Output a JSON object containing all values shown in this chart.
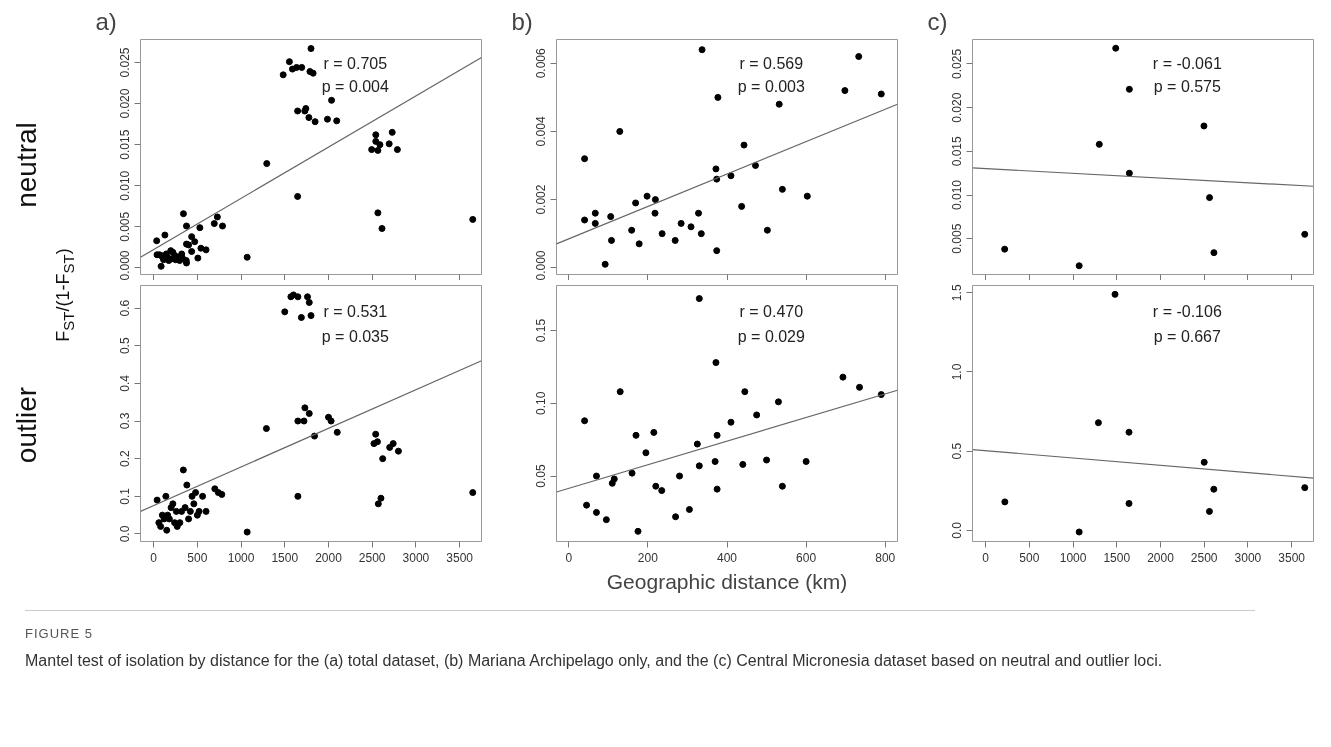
{
  "chart_data": [
    {
      "type": "scatter",
      "title": "a)",
      "ylabel": "F$_{ST}$/(1-F$_{ST}$)",
      "annotations": [
        "r = 0.705",
        "p = 0.004",
        "neutral"
      ],
      "tick_labels": "y",
      "xlim": [
        -150,
        3750
      ],
      "ylim": [
        -0.0008,
        0.0278
      ],
      "xticks": [
        0,
        500,
        1000,
        1500,
        2000,
        2500,
        3000,
        3500
      ],
      "yticks": [
        {
          "value": 0,
          "label": "0.000"
        },
        {
          "value": 0.005,
          "label": "0.005"
        },
        {
          "value": 0.01,
          "label": "0.010"
        },
        {
          "value": 0.015,
          "label": "0.015"
        },
        {
          "value": 0.02,
          "label": "0.020"
        },
        {
          "value": 0.025,
          "label": "0.025"
        }
      ],
      "series": [
        {
          "marker": "circle",
          "color": "#000000",
          "x": [
            1482,
            1553,
            1588,
            1635,
            1694,
            1800,
            1788,
            1824,
            1647,
            1729,
            1741,
            1776,
            1847,
            1988,
            2035,
            2094,
            1294,
            1647,
            2494,
            2541,
            2541,
            2565,
            2588,
            2694,
            2729,
            2788,
            2565,
            2612,
            1070,
            35,
            129,
            341,
            376,
            529,
            694,
            729,
            788,
            435,
            470,
            376,
            400,
            541,
            600,
            435,
            506,
            376,
            39,
            67,
            86,
            106,
            157,
            196,
            220,
            173,
            204,
            251,
            282,
            321,
            329,
            243,
            86,
            114,
            298,
            145,
            373,
            3650
          ],
          "values": [
            0.0235,
            0.0251,
            0.0242,
            0.0244,
            0.0244,
            0.0267,
            0.0239,
            0.0237,
            0.0191,
            0.0191,
            0.0194,
            0.0183,
            0.0178,
            0.0181,
            0.0204,
            0.0179,
            0.0127,
            0.0087,
            0.0144,
            0.0162,
            0.0154,
            0.0143,
            0.015,
            0.0151,
            0.0165,
            0.0144,
            0.0067,
            0.0048,
            0.0013,
            0.0033,
            0.004,
            0.0066,
            0.0051,
            0.0049,
            0.0054,
            0.0062,
            0.0051,
            0.0038,
            0.0032,
            0.0029,
            0.0028,
            0.0024,
            0.0022,
            0.002,
            0.0012,
            0.0006,
            0.0016,
            0.0016,
            0.0015,
            0.0013,
            0.0013,
            0.0021,
            0.0019,
            0.0009,
            0.0011,
            0.001,
            0.0013,
            0.0017,
            0.0012,
            0.0015,
            0.0002,
            0.001,
            0.0009,
            0.0017,
            0.0009,
            0.0059
          ]
        },
        {
          "type": "line",
          "color": "#666666",
          "line_style": "solid",
          "x": [
            -150,
            3750
          ],
          "values": [
            0.0013,
            0.0256
          ]
        }
      ]
    },
    {
      "type": "scatter",
      "title": "b)",
      "annotations": [
        "r = 0.569",
        "p = 0.003"
      ],
      "tick_labels": "y",
      "xlim": [
        -31,
        831
      ],
      "ylim": [
        -0.0002,
        0.0067
      ],
      "xticks": [
        0,
        200,
        400,
        600,
        800
      ],
      "yticks": [
        {
          "value": 0,
          "label": "0.000"
        },
        {
          "value": 0.002,
          "label": "0.002"
        },
        {
          "value": 0.004,
          "label": "0.004"
        },
        {
          "value": 0.006,
          "label": "0.006"
        }
      ],
      "series": [
        {
          "marker": "circle",
          "color": "#000000",
          "x": [
            40,
            129,
            337,
            377,
            372,
            374,
            410,
            443,
            472,
            532,
            540,
            603,
            698,
            733,
            790,
            198,
            219,
            40,
            67,
            67,
            106,
            108,
            92,
            159,
            169,
            178,
            218,
            236,
            269,
            284,
            309,
            328,
            335,
            374,
            437,
            502
          ],
          "values": [
            0.0032,
            0.004,
            0.0064,
            0.005,
            0.0029,
            0.0026,
            0.0027,
            0.0036,
            0.003,
            0.0048,
            0.0023,
            0.0021,
            0.0052,
            0.0062,
            0.0051,
            0.0021,
            0.002,
            0.0014,
            0.0016,
            0.0013,
            0.0015,
            0.0008,
            0.0001,
            0.0011,
            0.0019,
            0.0007,
            0.0016,
            0.001,
            0.0008,
            0.0013,
            0.0012,
            0.0016,
            0.001,
            0.0005,
            0.0018,
            0.0011
          ]
        },
        {
          "type": "line",
          "color": "#666666",
          "line_style": "solid",
          "x": [
            -31,
            831
          ],
          "values": [
            0.0007,
            0.0048
          ]
        }
      ]
    },
    {
      "type": "scatter",
      "title": "c)",
      "annotations": [
        "r = -0.061",
        "p = 0.575"
      ],
      "tick_labels": "y",
      "xlim": [
        -150,
        3750
      ],
      "ylim": [
        0.0009,
        0.0278
      ],
      "xticks": [
        0,
        500,
        1000,
        1500,
        2000,
        2500,
        3000,
        3500
      ],
      "yticks": [
        {
          "value": 0.005,
          "label": "0.005"
        },
        {
          "value": 0.01,
          "label": "0.010"
        },
        {
          "value": 0.015,
          "label": "0.015"
        },
        {
          "value": 0.02,
          "label": "0.020"
        },
        {
          "value": 0.025,
          "label": "0.025"
        }
      ],
      "series": [
        {
          "marker": "circle",
          "color": "#000000",
          "x": [
            1488,
            1644,
            1300,
            1644,
            2497,
            2561,
            2611,
            218,
            1070,
            3650
          ],
          "values": [
            0.0268,
            0.0221,
            0.0158,
            0.0125,
            0.0179,
            0.0097,
            0.0034,
            0.0038,
            0.0019,
            0.0055
          ]
        },
        {
          "type": "line",
          "color": "#666666",
          "line_style": "solid",
          "x": [
            -150,
            3750
          ],
          "values": [
            0.0131,
            0.011
          ]
        }
      ]
    },
    {
      "type": "scatter",
      "annotations": [
        "r = 0.531",
        "p = 0.035",
        "outlier"
      ],
      "xlim": [
        -150,
        3750
      ],
      "ylim": [
        -0.02,
        0.66
      ],
      "xticks": [
        0,
        500,
        1000,
        1500,
        2000,
        2500,
        3000,
        3500
      ],
      "yticks": [
        {
          "value": 0,
          "label": "0.0"
        },
        {
          "value": 0.1,
          "label": "0.1"
        },
        {
          "value": 0.2,
          "label": "0.2"
        },
        {
          "value": 0.3,
          "label": "0.3"
        },
        {
          "value": 0.4,
          "label": "0.4"
        },
        {
          "value": 0.5,
          "label": "0.5"
        },
        {
          "value": 0.6,
          "label": "0.6"
        }
      ],
      "series": [
        {
          "marker": "circle",
          "color": "#000000",
          "x": [
            1500,
            1570,
            1600,
            1650,
            1690,
            1760,
            1780,
            1800,
            1290,
            1650,
            1650,
            1720,
            1730,
            1780,
            1840,
            2000,
            2030,
            2100,
            2520,
            2540,
            2560,
            2570,
            2600,
            2620,
            2700,
            2740,
            2800,
            1070,
            3650,
            40,
            60,
            80,
            100,
            120,
            140,
            160,
            180,
            200,
            220,
            240,
            260,
            270,
            300,
            320,
            340,
            360,
            380,
            400,
            420,
            440,
            460,
            480,
            500,
            520,
            560,
            600,
            700,
            740,
            780,
            150
          ],
          "values": [
            0.59,
            0.63,
            0.635,
            0.63,
            0.575,
            0.63,
            0.615,
            0.58,
            0.28,
            0.3,
            0.1,
            0.3,
            0.335,
            0.32,
            0.26,
            0.31,
            0.3,
            0.27,
            0.24,
            0.265,
            0.245,
            0.08,
            0.095,
            0.2,
            0.23,
            0.24,
            0.22,
            0.005,
            0.11,
            0.09,
            0.03,
            0.02,
            0.05,
            0.04,
            0.1,
            0.05,
            0.04,
            0.07,
            0.08,
            0.03,
            0.06,
            0.02,
            0.03,
            0.06,
            0.17,
            0.07,
            0.13,
            0.04,
            0.06,
            0.1,
            0.08,
            0.11,
            0.05,
            0.06,
            0.1,
            0.06,
            0.12,
            0.11,
            0.105,
            0.01
          ]
        },
        {
          "type": "line",
          "color": "#666666",
          "line_style": "solid",
          "x": [
            -150,
            3750
          ],
          "values": [
            0.06,
            0.46
          ]
        }
      ]
    },
    {
      "type": "scatter",
      "xlabel": "Geographic distance (km)",
      "annotations": [
        "r = 0.470",
        "p = 0.029"
      ],
      "xlim": [
        -31,
        831
      ],
      "ylim": [
        0.005,
        0.181
      ],
      "xticks": [
        0,
        200,
        400,
        600,
        800
      ],
      "yticks": [
        {
          "value": 0.05,
          "label": "0.05"
        },
        {
          "value": 0.1,
          "label": "0.10"
        },
        {
          "value": 0.15,
          "label": "0.15"
        }
      ],
      "series": [
        {
          "marker": "circle",
          "color": "#000000",
          "x": [
            40,
            45,
            70,
            70,
            95,
            110,
            115,
            130,
            160,
            170,
            175,
            195,
            215,
            220,
            235,
            270,
            280,
            305,
            325,
            330,
            330,
            370,
            375,
            375,
            372,
            410,
            440,
            445,
            475,
            500,
            530,
            540,
            600,
            693,
            735,
            790
          ],
          "values": [
            0.088,
            0.03,
            0.05,
            0.025,
            0.02,
            0.045,
            0.048,
            0.108,
            0.052,
            0.078,
            0.012,
            0.066,
            0.08,
            0.043,
            0.04,
            0.022,
            0.05,
            0.027,
            0.072,
            0.057,
            0.172,
            0.06,
            0.078,
            0.041,
            0.128,
            0.087,
            0.058,
            0.108,
            0.092,
            0.061,
            0.101,
            0.043,
            0.06,
            0.118,
            0.111,
            0.106
          ]
        },
        {
          "type": "line",
          "color": "#666666",
          "line_style": "solid",
          "x": [
            -31,
            831
          ],
          "values": [
            0.039,
            0.109
          ]
        }
      ]
    },
    {
      "type": "scatter",
      "annotations": [
        "r = -0.106",
        "p = 0.667",
        "FIGURE 5",
        "Mantel test of isolation by distance for the (a) total dataset, (b) Mariana Archipelago only, and the (c) Central Micronesia dataset based on neutral and outlier loci."
      ],
      "xlim": [
        -150,
        3750
      ],
      "ylim": [
        -0.07,
        1.546
      ],
      "xticks": [
        0,
        500,
        1000,
        1500,
        2000,
        2500,
        3000,
        3500
      ],
      "yticks": [
        {
          "value": 0,
          "label": "0.0"
        },
        {
          "value": 0.5,
          "label": "0.5"
        },
        {
          "value": 1,
          "label": "1.0"
        },
        {
          "value": 1.5,
          "label": "1.5"
        }
      ],
      "series": [
        {
          "marker": "circle",
          "color": "#000000",
          "x": [
            1480,
            220,
            1070,
            1290,
            1640,
            1640,
            2500,
            2560,
            2610,
            3650
          ],
          "values": [
            1.49,
            0.18,
            -0.01,
            0.68,
            0.62,
            0.17,
            0.43,
            0.12,
            0.26,
            0.27
          ]
        },
        {
          "type": "line",
          "color": "#666666",
          "line_style": "solid",
          "x": [
            -150,
            3750
          ],
          "values": [
            0.51,
            0.33
          ]
        }
      ]
    }
  ]
}
